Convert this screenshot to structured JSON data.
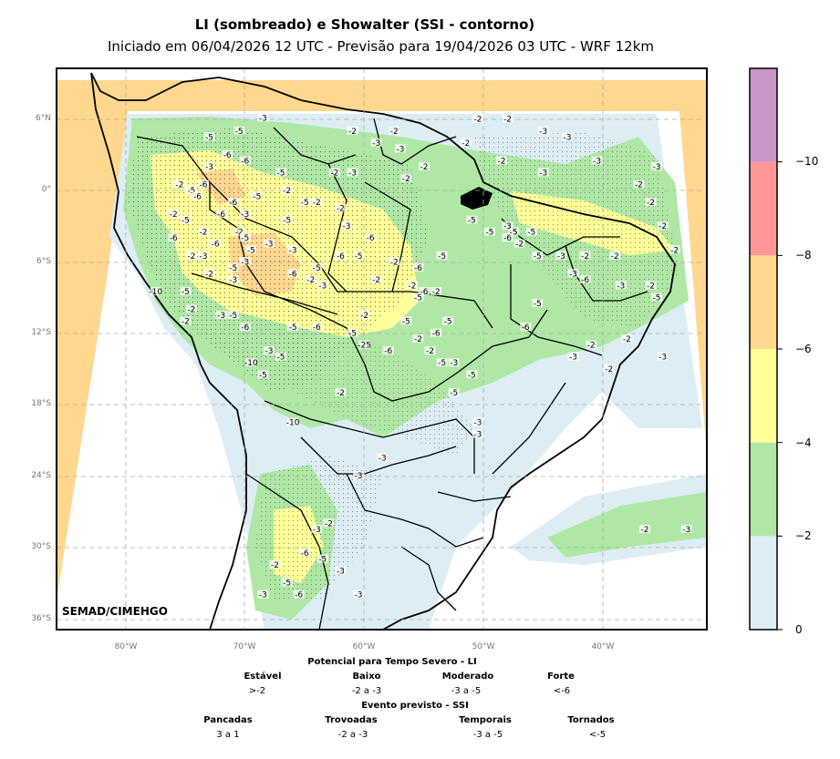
{
  "title": "LI (sombreado) e Showalter (SSI - contorno)",
  "subtitle": "Iniciado em 06/04/2026 12 UTC - Previsão para 19/04/2026 03 UTC - WRF 12km",
  "credit": "SEMAD/CIMEHGO",
  "lat_labels": [
    "6°N",
    "0°",
    "6°S",
    "12°S",
    "18°S",
    "24°S",
    "30°S",
    "36°S"
  ],
  "lon_labels": [
    "80°W",
    "70°W",
    "60°W",
    "50°W",
    "40°W"
  ],
  "colorbar": {
    "colors": [
      "#dcedf4",
      "#aee8a4",
      "#ffff99",
      "#ffd78e",
      "#ff9696",
      "#c896c8"
    ],
    "ticks": [
      "0",
      "−2",
      "−4",
      "−6",
      "−8",
      "−10"
    ]
  },
  "legend": {
    "li_title": "Potencial para Tempo Severo - LI",
    "li_cats": [
      {
        "name": "Estável",
        "value": ">-2"
      },
      {
        "name": "Baixo",
        "value": "-2 a -3"
      },
      {
        "name": "Moderado",
        "value": "-3 a -5"
      },
      {
        "name": "Forte",
        "value": "<-6"
      }
    ],
    "ssi_title": "Evento previsto - SSI",
    "ssi_cats": [
      {
        "name": "Pancadas",
        "value": "3 a 1"
      },
      {
        "name": "Trovoadas",
        "value": "-2 a -3"
      },
      {
        "name": "Temporais",
        "value": "-3 a -5"
      },
      {
        "name": "Tornados",
        "value": "<-5"
      }
    ]
  },
  "contour_labels": [
    {
      "t": "-3",
      "lon": -68.5,
      "lat": 6.1
    },
    {
      "t": "-5",
      "lon": -70.5,
      "lat": 5.0
    },
    {
      "t": "-5",
      "lon": -73.0,
      "lat": 4.5
    },
    {
      "t": "-6",
      "lon": -71.5,
      "lat": 3.0
    },
    {
      "t": "-6",
      "lon": -70.0,
      "lat": 2.5
    },
    {
      "t": "-3",
      "lon": -73.0,
      "lat": 2.0
    },
    {
      "t": "-5",
      "lon": -67.0,
      "lat": 1.5
    },
    {
      "t": "-6",
      "lon": -73.5,
      "lat": 0.5
    },
    {
      "t": "-2",
      "lon": -75.5,
      "lat": 0.5
    },
    {
      "t": "-5",
      "lon": -74.5,
      "lat": 0.0
    },
    {
      "t": "-6",
      "lon": -74.0,
      "lat": -0.5
    },
    {
      "t": "-5",
      "lon": -69.0,
      "lat": -0.5
    },
    {
      "t": "-2",
      "lon": -66.5,
      "lat": 0.0
    },
    {
      "t": "-5",
      "lon": -65.0,
      "lat": -1.0
    },
    {
      "t": "-2",
      "lon": -64.0,
      "lat": -1.0
    },
    {
      "t": "-2",
      "lon": -62.0,
      "lat": -1.5
    },
    {
      "t": "-6",
      "lon": -71.0,
      "lat": -1.0
    },
    {
      "t": "-3",
      "lon": -70.0,
      "lat": -2.0
    },
    {
      "t": "-6",
      "lon": -72.0,
      "lat": -2.0
    },
    {
      "t": "-5",
      "lon": -75.0,
      "lat": -2.5
    },
    {
      "t": "-2",
      "lon": -76.0,
      "lat": -2.0
    },
    {
      "t": "-5",
      "lon": -66.5,
      "lat": -2.5
    },
    {
      "t": "-3",
      "lon": -61.5,
      "lat": -3.0
    },
    {
      "t": "-2",
      "lon": -70.5,
      "lat": -3.5
    },
    {
      "t": "-2",
      "lon": -73.5,
      "lat": -3.5
    },
    {
      "t": "-6",
      "lon": -72.5,
      "lat": -4.5
    },
    {
      "t": "-5",
      "lon": -70.0,
      "lat": -4.0
    },
    {
      "t": "-6",
      "lon": -76.0,
      "lat": -4.0
    },
    {
      "t": "-2",
      "lon": -74.5,
      "lat": -5.5
    },
    {
      "t": "-3",
      "lon": -73.5,
      "lat": -5.5
    },
    {
      "t": "-5",
      "lon": -69.5,
      "lat": -5.0
    },
    {
      "t": "-3",
      "lon": -68.0,
      "lat": -4.5
    },
    {
      "t": "-3",
      "lon": -66.0,
      "lat": -5.0
    },
    {
      "t": "-6",
      "lon": -62.0,
      "lat": -5.5
    },
    {
      "t": "-5",
      "lon": -60.5,
      "lat": -5.5
    },
    {
      "t": "-6",
      "lon": -59.5,
      "lat": -4.0
    },
    {
      "t": "-2",
      "lon": -57.5,
      "lat": -6.0
    },
    {
      "t": "-6",
      "lon": -55.5,
      "lat": -6.5
    },
    {
      "t": "-5",
      "lon": -53.5,
      "lat": -5.5
    },
    {
      "t": "-5",
      "lon": -71.0,
      "lat": -6.5
    },
    {
      "t": "-3",
      "lon": -70.0,
      "lat": -6.0
    },
    {
      "t": "-6",
      "lon": -66.0,
      "lat": -7.0
    },
    {
      "t": "-5",
      "lon": -64.0,
      "lat": -6.5
    },
    {
      "t": "-2",
      "lon": -73.0,
      "lat": -7.0
    },
    {
      "t": "-3",
      "lon": -71.0,
      "lat": -7.5
    },
    {
      "t": "-2",
      "lon": -64.5,
      "lat": -7.5
    },
    {
      "t": "-3",
      "lon": -63.5,
      "lat": -8.0
    },
    {
      "t": "-2",
      "lon": -59.0,
      "lat": -7.5
    },
    {
      "t": "-2",
      "lon": -56.0,
      "lat": -8.0
    },
    {
      "t": "-6",
      "lon": -55.0,
      "lat": -8.5
    },
    {
      "t": "-2",
      "lon": -54.0,
      "lat": -8.5
    },
    {
      "t": "-5",
      "lon": -55.5,
      "lat": -9.0
    },
    {
      "t": "-10",
      "lon": -77.5,
      "lat": -8.5
    },
    {
      "t": "-5",
      "lon": -75.0,
      "lat": -8.5
    },
    {
      "t": "-2",
      "lon": -74.5,
      "lat": -10.0
    },
    {
      "t": "-3",
      "lon": -72.0,
      "lat": -10.5
    },
    {
      "t": "-5",
      "lon": -71.0,
      "lat": -10.5
    },
    {
      "t": "-2",
      "lon": -75.0,
      "lat": -11.0
    },
    {
      "t": "-6",
      "lon": -70.0,
      "lat": -11.5
    },
    {
      "t": "-5",
      "lon": -66.0,
      "lat": -11.5
    },
    {
      "t": "-6",
      "lon": -64.0,
      "lat": -11.5
    },
    {
      "t": "-2",
      "lon": -60.0,
      "lat": -10.5
    },
    {
      "t": "-5",
      "lon": -56.5,
      "lat": -11.0
    },
    {
      "t": "-5",
      "lon": -53.0,
      "lat": -11.0
    },
    {
      "t": "-6",
      "lon": -54.0,
      "lat": -12.0
    },
    {
      "t": "-5",
      "lon": -61.0,
      "lat": -12.0
    },
    {
      "t": "-25",
      "lon": -60.0,
      "lat": -13.0
    },
    {
      "t": "-6",
      "lon": -58.0,
      "lat": -13.5
    },
    {
      "t": "-2",
      "lon": -55.5,
      "lat": -12.5
    },
    {
      "t": "-2",
      "lon": -54.5,
      "lat": -13.5
    },
    {
      "t": "-3",
      "lon": -68.0,
      "lat": -13.5
    },
    {
      "t": "-5",
      "lon": -67.0,
      "lat": -14.0
    },
    {
      "t": "-10",
      "lon": -69.5,
      "lat": -14.5
    },
    {
      "t": "-5",
      "lon": -68.5,
      "lat": -15.5
    },
    {
      "t": "-5",
      "lon": -53.5,
      "lat": -14.5
    },
    {
      "t": "-3",
      "lon": -52.5,
      "lat": -14.5
    },
    {
      "t": "-5",
      "lon": -51.0,
      "lat": -15.5
    },
    {
      "t": "-2",
      "lon": -62.0,
      "lat": -17.0
    },
    {
      "t": "-5",
      "lon": -52.5,
      "lat": -17.0
    },
    {
      "t": "-10",
      "lon": -66.0,
      "lat": -19.5
    },
    {
      "t": "-3",
      "lon": -50.5,
      "lat": -19.5
    },
    {
      "t": "-3",
      "lon": -50.5,
      "lat": -20.5
    },
    {
      "t": "-3",
      "lon": -58.5,
      "lat": -22.5
    },
    {
      "t": "-3",
      "lon": -60.5,
      "lat": -24.0
    },
    {
      "t": "-2",
      "lon": -63.0,
      "lat": -28.0
    },
    {
      "t": "-3",
      "lon": -64.0,
      "lat": -28.5
    },
    {
      "t": "-6",
      "lon": -65.0,
      "lat": -30.5
    },
    {
      "t": "-5",
      "lon": -63.5,
      "lat": -31.0
    },
    {
      "t": "-2",
      "lon": -67.5,
      "lat": -31.5
    },
    {
      "t": "-3",
      "lon": -62.0,
      "lat": -32.0
    },
    {
      "t": "-5",
      "lon": -66.5,
      "lat": -33.0
    },
    {
      "t": "-6",
      "lon": -65.5,
      "lat": -34.0
    },
    {
      "t": "-3",
      "lon": -68.5,
      "lat": -34.0
    },
    {
      "t": "-3",
      "lon": -60.5,
      "lat": -34.0
    },
    {
      "t": "-2",
      "lon": -50.5,
      "lat": 6.0
    },
    {
      "t": "-2",
      "lon": -51.5,
      "lat": 4.0
    },
    {
      "t": "-2",
      "lon": -57.5,
      "lat": 5.0
    },
    {
      "t": "-3",
      "lon": -57.0,
      "lat": 3.5
    },
    {
      "t": "-2",
      "lon": -55.0,
      "lat": 2.0
    },
    {
      "t": "-2",
      "lon": -61.0,
      "lat": 5.0
    },
    {
      "t": "-3",
      "lon": -59.0,
      "lat": 4.0
    },
    {
      "t": "-2",
      "lon": -62.5,
      "lat": 1.5
    },
    {
      "t": "-3",
      "lon": -61.0,
      "lat": 1.5
    },
    {
      "t": "-2",
      "lon": -56.5,
      "lat": 1.0
    },
    {
      "t": "-2",
      "lon": -48.0,
      "lat": 6.0
    },
    {
      "t": "-3",
      "lon": -45.0,
      "lat": 5.0
    },
    {
      "t": "-3",
      "lon": -43.0,
      "lat": 4.5
    },
    {
      "t": "-2",
      "lon": -48.5,
      "lat": 2.5
    },
    {
      "t": "-3",
      "lon": -40.5,
      "lat": 2.5
    },
    {
      "t": "-3",
      "lon": -45.0,
      "lat": 1.5
    },
    {
      "t": "-3",
      "lon": -35.5,
      "lat": 2.0
    },
    {
      "t": "-2",
      "lon": -37.0,
      "lat": 0.5
    },
    {
      "t": "-2",
      "lon": -36.0,
      "lat": -1.0
    },
    {
      "t": "-2",
      "lon": -35.0,
      "lat": -3.0
    },
    {
      "t": "-2",
      "lon": -34.0,
      "lat": -5.0
    },
    {
      "t": "-5",
      "lon": -51.0,
      "lat": -2.5
    },
    {
      "t": "-5",
      "lon": -49.5,
      "lat": -3.5
    },
    {
      "t": "-5",
      "lon": -47.5,
      "lat": -3.5
    },
    {
      "t": "-3",
      "lon": -48.0,
      "lat": -3.0
    },
    {
      "t": "-6",
      "lon": -48.0,
      "lat": -4.0
    },
    {
      "t": "-2",
      "lon": -47.0,
      "lat": -4.5
    },
    {
      "t": "-5",
      "lon": -46.0,
      "lat": -3.5
    },
    {
      "t": "-5",
      "lon": -45.5,
      "lat": -5.5
    },
    {
      "t": "-3",
      "lon": -43.5,
      "lat": -5.5
    },
    {
      "t": "-2",
      "lon": -41.5,
      "lat": -5.5
    },
    {
      "t": "-2",
      "lon": -39.0,
      "lat": -5.5
    },
    {
      "t": "-3",
      "lon": -42.5,
      "lat": -7.0
    },
    {
      "t": "-6",
      "lon": -41.5,
      "lat": -7.5
    },
    {
      "t": "-3",
      "lon": -38.5,
      "lat": -8.0
    },
    {
      "t": "-2",
      "lon": -36.0,
      "lat": -8.0
    },
    {
      "t": "-5",
      "lon": -35.5,
      "lat": -9.0
    },
    {
      "t": "-5",
      "lon": -45.5,
      "lat": -9.5
    },
    {
      "t": "-6",
      "lon": -46.5,
      "lat": -11.5
    },
    {
      "t": "-3",
      "lon": -42.5,
      "lat": -14.0
    },
    {
      "t": "-2",
      "lon": -41.0,
      "lat": -13.0
    },
    {
      "t": "-2",
      "lon": -38.0,
      "lat": -12.5
    },
    {
      "t": "-3",
      "lon": -35.0,
      "lat": -14.0
    },
    {
      "t": "-2",
      "lon": -39.5,
      "lat": -15.0
    },
    {
      "t": "-2",
      "lon": -36.5,
      "lat": -28.5
    },
    {
      "t": "-3",
      "lon": -33.0,
      "lat": -28.5
    }
  ]
}
